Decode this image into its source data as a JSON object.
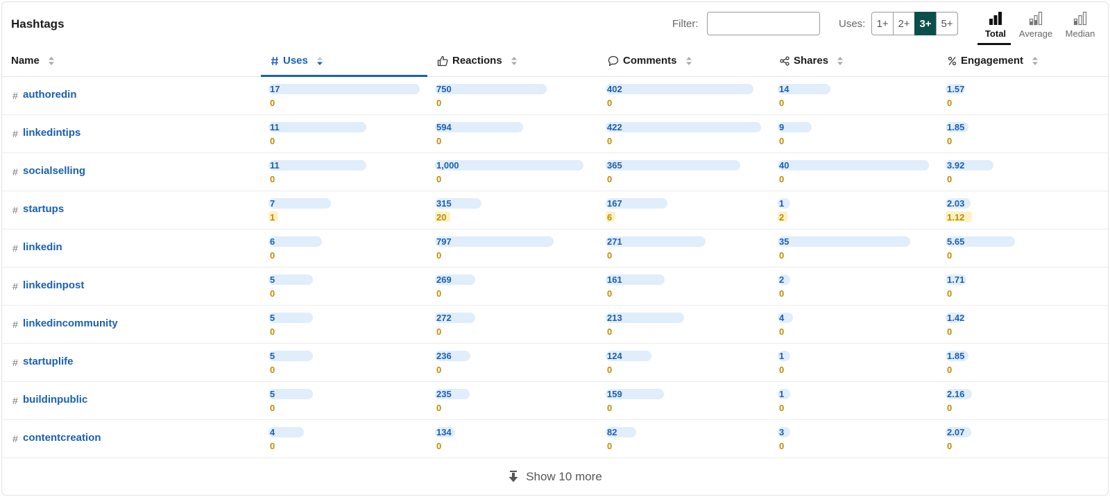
{
  "header": {
    "title": "Hashtags",
    "filter_label": "Filter:",
    "filter_value": "",
    "uses_label": "Uses:",
    "uses_options": [
      "1+",
      "2+",
      "3+",
      "5+"
    ],
    "uses_selected": "3+",
    "modes": [
      {
        "label": "Total",
        "active": true
      },
      {
        "label": "Average",
        "active": false
      },
      {
        "label": "Median",
        "active": false
      }
    ]
  },
  "columns": {
    "name": "Name",
    "uses": "Uses",
    "reactions": "Reactions",
    "comments": "Comments",
    "shares": "Shares",
    "engagement": "Engagement",
    "sorted_by": "uses"
  },
  "colors": {
    "accent": "#1a5fb4",
    "active_toggle": "#0b4f4a",
    "secondary_value": "#c08b00",
    "bar": "#e0edfb",
    "secondary_bar": "#fdf1c4"
  },
  "rows": [
    {
      "tag": "authoredin",
      "uses": "17",
      "uses_sub": "0",
      "reactions": "750",
      "reactions_sub": "0",
      "comments": "402",
      "comments_sub": "0",
      "shares": "14",
      "shares_sub": "0",
      "engagement": "1.57",
      "engagement_sub": "0"
    },
    {
      "tag": "linkedintips",
      "uses": "11",
      "uses_sub": "0",
      "reactions": "594",
      "reactions_sub": "0",
      "comments": "422",
      "comments_sub": "0",
      "shares": "9",
      "shares_sub": "0",
      "engagement": "1.85",
      "engagement_sub": "0"
    },
    {
      "tag": "socialselling",
      "uses": "11",
      "uses_sub": "0",
      "reactions": "1,000",
      "reactions_sub": "0",
      "comments": "365",
      "comments_sub": "0",
      "shares": "40",
      "shares_sub": "0",
      "engagement": "3.92",
      "engagement_sub": "0"
    },
    {
      "tag": "startups",
      "uses": "7",
      "uses_sub": "1",
      "reactions": "315",
      "reactions_sub": "20",
      "comments": "167",
      "comments_sub": "6",
      "shares": "1",
      "shares_sub": "2",
      "engagement": "2.03",
      "engagement_sub": "1.12"
    },
    {
      "tag": "linkedin",
      "uses": "6",
      "uses_sub": "0",
      "reactions": "797",
      "reactions_sub": "0",
      "comments": "271",
      "comments_sub": "0",
      "shares": "35",
      "shares_sub": "0",
      "engagement": "5.65",
      "engagement_sub": "0"
    },
    {
      "tag": "linkedinpost",
      "uses": "5",
      "uses_sub": "0",
      "reactions": "269",
      "reactions_sub": "0",
      "comments": "161",
      "comments_sub": "0",
      "shares": "2",
      "shares_sub": "0",
      "engagement": "1.71",
      "engagement_sub": "0"
    },
    {
      "tag": "linkedincommunity",
      "uses": "5",
      "uses_sub": "0",
      "reactions": "272",
      "reactions_sub": "0",
      "comments": "213",
      "comments_sub": "0",
      "shares": "4",
      "shares_sub": "0",
      "engagement": "1.42",
      "engagement_sub": "0"
    },
    {
      "tag": "startuplife",
      "uses": "5",
      "uses_sub": "0",
      "reactions": "236",
      "reactions_sub": "0",
      "comments": "124",
      "comments_sub": "0",
      "shares": "1",
      "shares_sub": "0",
      "engagement": "1.85",
      "engagement_sub": "0"
    },
    {
      "tag": "buildinpublic",
      "uses": "5",
      "uses_sub": "0",
      "reactions": "235",
      "reactions_sub": "0",
      "comments": "159",
      "comments_sub": "0",
      "shares": "1",
      "shares_sub": "0",
      "engagement": "2.16",
      "engagement_sub": "0"
    },
    {
      "tag": "contentcreation",
      "uses": "4",
      "uses_sub": "0",
      "reactions": "134",
      "reactions_sub": "0",
      "comments": "82",
      "comments_sub": "0",
      "shares": "3",
      "shares_sub": "0",
      "engagement": "2.07",
      "engagement_sub": "0"
    }
  ],
  "footer": {
    "show_more_label": "Show 10 more"
  }
}
